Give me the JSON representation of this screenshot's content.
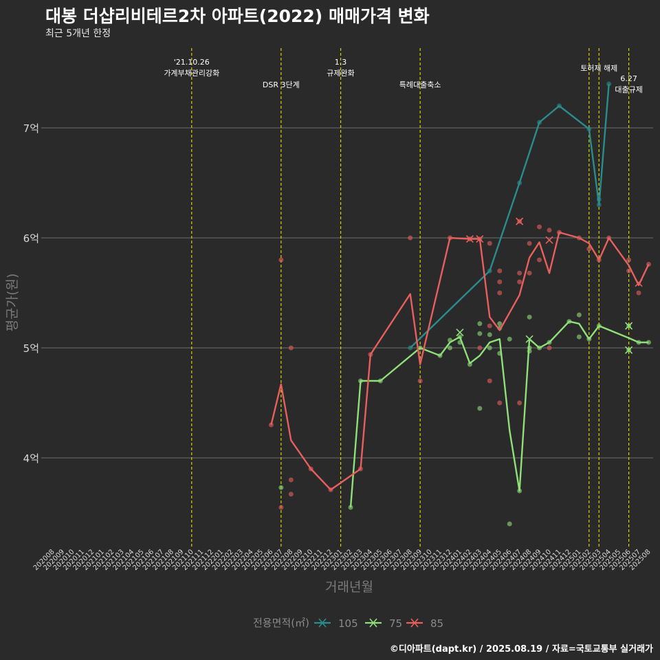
{
  "header": {
    "title": "대봉 더샵리비테르2차 아파트(2022) 매매가격 변화",
    "subtitle": "최근 5개년 한정"
  },
  "footer": {
    "caption": "©디아파트(dapt.kr) / 2025.08.19 / 자료=국토교통부 실거래가"
  },
  "chart_data": {
    "type": "line",
    "xlabel": "거래년월",
    "ylabel": "평균가(원)",
    "ylim": [
      3.2,
      7.8
    ],
    "x_categories": [
      "202008",
      "202009",
      "202010",
      "202011",
      "202012",
      "202101",
      "202102",
      "202103",
      "202104",
      "202105",
      "202106",
      "202107",
      "202108",
      "202109",
      "202110",
      "202111",
      "202112",
      "202201",
      "202202",
      "202203",
      "202204",
      "202205",
      "202206",
      "202207",
      "202208",
      "202209",
      "202210",
      "202211",
      "202212",
      "202301",
      "202302",
      "202303",
      "202304",
      "202305",
      "202306",
      "202307",
      "202308",
      "202309",
      "202310",
      "202311",
      "202312",
      "202401",
      "202402",
      "202403",
      "202404",
      "202405",
      "202406",
      "202407",
      "202408",
      "202409",
      "202410",
      "202411",
      "202412",
      "202501",
      "202502",
      "202503",
      "202504",
      "202505",
      "202506",
      "202507",
      "202508"
    ],
    "y_ticks": [
      {
        "value": 4,
        "label": "4억"
      },
      {
        "value": 5,
        "label": "5억"
      },
      {
        "value": 6,
        "label": "6억"
      },
      {
        "value": 7,
        "label": "7억"
      }
    ],
    "legend": {
      "title": "전용면적(㎡)",
      "position": "bottom",
      "entries": [
        {
          "label": "105",
          "color": "#2a8c8c"
        },
        {
          "label": "75",
          "color": "#90e07a"
        },
        {
          "label": "85",
          "color": "#e8605e"
        }
      ]
    },
    "series": [
      {
        "name": "105",
        "color": "#2a8c8c",
        "line": [
          [
            "202308",
            5.0
          ],
          [
            "202404",
            5.7
          ],
          [
            "202407",
            6.5
          ],
          [
            "202409",
            7.05
          ],
          [
            "202411",
            7.2
          ],
          [
            "202502",
            6.99
          ],
          [
            "202503",
            6.3
          ],
          [
            "202504",
            7.4
          ]
        ],
        "points": [
          [
            "202308",
            5.0
          ],
          [
            "202404",
            5.7
          ],
          [
            "202407",
            6.5
          ],
          [
            "202409",
            7.05
          ],
          [
            "202411",
            7.2
          ],
          [
            "202502",
            6.99
          ],
          [
            "202503",
            6.3
          ],
          [
            "202503",
            6.35
          ],
          [
            "202504",
            7.4
          ]
        ],
        "crosses": []
      },
      {
        "name": "75",
        "color": "#90e07a",
        "line": [
          [
            "202302",
            3.55
          ],
          [
            "202303",
            4.7
          ],
          [
            "202305",
            4.7
          ],
          [
            "202309",
            5.0
          ],
          [
            "202311",
            4.93
          ],
          [
            "202312",
            5.05
          ],
          [
            "202401",
            5.1
          ],
          [
            "202402",
            4.86
          ],
          [
            "202403",
            4.93
          ],
          [
            "202404",
            5.05
          ],
          [
            "202405",
            5.08
          ],
          [
            "202406",
            4.25
          ],
          [
            "202407",
            3.7
          ],
          [
            "202408",
            5.08
          ],
          [
            "202409",
            5.0
          ],
          [
            "202410",
            5.05
          ],
          [
            "202412",
            5.24
          ],
          [
            "202501",
            5.22
          ],
          [
            "202502",
            5.08
          ],
          [
            "202503",
            5.2
          ],
          [
            "202506",
            5.09
          ],
          [
            "202507",
            5.05
          ],
          [
            "202508",
            5.05
          ]
        ],
        "points": [
          [
            "202207",
            3.73
          ],
          [
            "202302",
            3.55
          ],
          [
            "202303",
            4.7
          ],
          [
            "202305",
            4.7
          ],
          [
            "202309",
            5.0
          ],
          [
            "202311",
            4.93
          ],
          [
            "202312",
            5.07
          ],
          [
            "202312",
            5.0
          ],
          [
            "202401",
            5.05
          ],
          [
            "202401",
            5.1
          ],
          [
            "202402",
            4.85
          ],
          [
            "202403",
            5.22
          ],
          [
            "202403",
            5.13
          ],
          [
            "202403",
            4.45
          ],
          [
            "202404",
            5.12
          ],
          [
            "202404",
            5.0
          ],
          [
            "202405",
            5.22
          ],
          [
            "202405",
            5.18
          ],
          [
            "202405",
            4.95
          ],
          [
            "202406",
            5.08
          ],
          [
            "202406",
            3.4
          ],
          [
            "202407",
            3.7
          ],
          [
            "202408",
            5.28
          ],
          [
            "202408",
            5.0
          ],
          [
            "202408",
            4.97
          ],
          [
            "202409",
            5.0
          ],
          [
            "202410",
            5.05
          ],
          [
            "202412",
            5.24
          ],
          [
            "202501",
            5.3
          ],
          [
            "202501",
            5.1
          ],
          [
            "202502",
            5.08
          ],
          [
            "202503",
            5.2
          ],
          [
            "202506",
            5.2
          ],
          [
            "202506",
            4.98
          ],
          [
            "202507",
            5.05
          ],
          [
            "202508",
            5.05
          ]
        ],
        "crosses": [
          [
            "202401",
            5.14
          ],
          [
            "202408",
            5.08
          ],
          [
            "202506",
            5.2
          ],
          [
            "202506",
            4.98
          ]
        ]
      },
      {
        "name": "85",
        "color": "#e8605e",
        "line": [
          [
            "202206",
            4.3
          ],
          [
            "202207",
            4.67
          ],
          [
            "202208",
            4.16
          ],
          [
            "202210",
            3.9
          ],
          [
            "202212",
            3.71
          ],
          [
            "202303",
            3.9
          ],
          [
            "202304",
            4.94
          ],
          [
            "202308",
            5.49
          ],
          [
            "202309",
            4.85
          ],
          [
            "202312",
            6.0
          ],
          [
            "202402",
            5.99
          ],
          [
            "202403",
            5.99
          ],
          [
            "202404",
            5.28
          ],
          [
            "202405",
            5.16
          ],
          [
            "202407",
            5.48
          ],
          [
            "202408",
            5.82
          ],
          [
            "202409",
            5.96
          ],
          [
            "202410",
            5.68
          ],
          [
            "202411",
            6.05
          ],
          [
            "202501",
            6.0
          ],
          [
            "202502",
            5.95
          ],
          [
            "202503",
            5.8
          ],
          [
            "202504",
            6.0
          ],
          [
            "202506",
            5.75
          ],
          [
            "202507",
            5.57
          ],
          [
            "202508",
            5.76
          ]
        ],
        "points": [
          [
            "202206",
            4.3
          ],
          [
            "202207",
            5.8
          ],
          [
            "202207",
            3.55
          ],
          [
            "202208",
            5.0
          ],
          [
            "202208",
            3.8
          ],
          [
            "202208",
            3.67
          ],
          [
            "202210",
            3.9
          ],
          [
            "202212",
            3.71
          ],
          [
            "202303",
            3.9
          ],
          [
            "202304",
            4.94
          ],
          [
            "202308",
            6.0
          ],
          [
            "202309",
            4.7
          ],
          [
            "202312",
            6.0
          ],
          [
            "202402",
            5.99
          ],
          [
            "202403",
            5.99
          ],
          [
            "202403",
            5.0
          ],
          [
            "202404",
            5.95
          ],
          [
            "202404",
            5.2
          ],
          [
            "202404",
            4.7
          ],
          [
            "202405",
            5.7
          ],
          [
            "202405",
            5.6
          ],
          [
            "202405",
            5.5
          ],
          [
            "202405",
            4.5
          ],
          [
            "202407",
            6.15
          ],
          [
            "202407",
            5.68
          ],
          [
            "202407",
            5.6
          ],
          [
            "202407",
            4.5
          ],
          [
            "202408",
            5.95
          ],
          [
            "202408",
            5.68
          ],
          [
            "202409",
            6.1
          ],
          [
            "202409",
            5.8
          ],
          [
            "202410",
            6.07
          ],
          [
            "202410",
            5.0
          ],
          [
            "202411",
            6.05
          ],
          [
            "202501",
            6.0
          ],
          [
            "202502",
            5.9
          ],
          [
            "202503",
            5.8
          ],
          [
            "202504",
            6.0
          ],
          [
            "202506",
            5.8
          ],
          [
            "202506",
            5.7
          ],
          [
            "202507",
            5.5
          ],
          [
            "202508",
            5.76
          ]
        ],
        "crosses": [
          [
            "202402",
            5.99
          ],
          [
            "202403",
            5.99
          ],
          [
            "202407",
            6.15
          ],
          [
            "202410",
            5.98
          ],
          [
            "202507",
            5.59
          ]
        ]
      }
    ],
    "events": [
      {
        "x": "202110",
        "lines": [
          "'21.10.26",
          "가계부채관리강화"
        ],
        "row": 1
      },
      {
        "x": "202207",
        "lines": [
          "DSR 3단계"
        ],
        "row": 2
      },
      {
        "x": "202301",
        "lines": [
          "1.3",
          "규제완화"
        ],
        "row": 1
      },
      {
        "x": "202309",
        "lines": [
          "특례대출축소"
        ],
        "row": 2
      },
      {
        "x": "202502",
        "lines": [
          ""
        ],
        "row": 1
      },
      {
        "x": "202503",
        "lines": [
          "토허제 해제"
        ],
        "row": 1
      },
      {
        "x": "202506",
        "lines": [
          "6.27",
          "대출규제"
        ],
        "row": 3
      }
    ]
  }
}
